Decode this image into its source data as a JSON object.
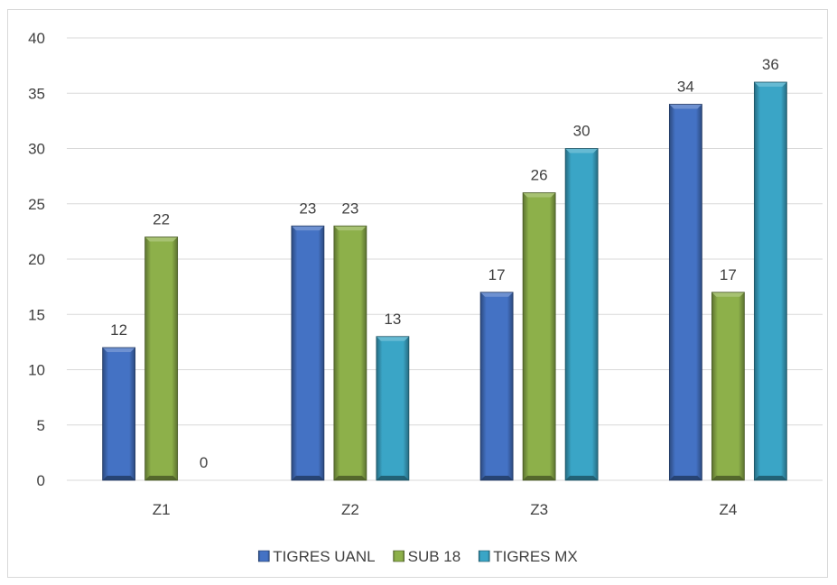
{
  "chart_data": {
    "type": "bar",
    "categories": [
      "Z1",
      "Z2",
      "Z3",
      "Z4"
    ],
    "series": [
      {
        "name": "TIGRES UANL",
        "values": [
          12,
          23,
          17,
          34
        ],
        "color": "#4472c4"
      },
      {
        "name": "SUB 18",
        "values": [
          22,
          23,
          26,
          17
        ],
        "color": "#8db04a"
      },
      {
        "name": "TIGRES MX",
        "values": [
          0,
          13,
          30,
          36
        ],
        "color": "#3aa5c6"
      }
    ],
    "title": "",
    "xlabel": "",
    "ylabel": "",
    "ylim": [
      0,
      40
    ],
    "yticks": [
      0,
      5,
      10,
      15,
      20,
      25,
      30,
      35,
      40
    ],
    "grid": true,
    "legend": "bottom",
    "data_labels": true
  }
}
